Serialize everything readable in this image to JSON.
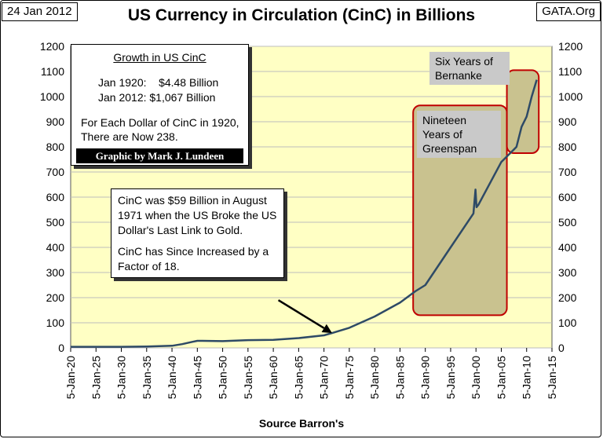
{
  "header": {
    "date": "24 Jan 2012",
    "title": "US Currency in Circulation (CinC) in Billions",
    "brand": "GATA.Org"
  },
  "footer": {
    "source": "Source Barron's"
  },
  "info_box": {
    "heading": "Growth in US CinC",
    "row1_label": "Jan 1920:",
    "row1_value": "$4.48 Billion",
    "row2_label": "Jan 2012:",
    "row2_value": "$1,067 Billion",
    "line1": "For Each Dollar of CinC in 1920,",
    "line2": "There are Now 238.",
    "credit": "Graphic by Mark J. Lundeen"
  },
  "annotation": {
    "text1": "CinC was $59 Billion in August 1971 when the US Broke the US Dollar's Last Link to Gold.",
    "text2": "CinC has Since Increased by a Factor of 18."
  },
  "labels": {
    "greenspan": "Nineteen Years of Greenspan",
    "bernanke": "Six Years of Bernanke"
  },
  "colors": {
    "plot_bg": "#ffffc4",
    "series": "#2e4a66",
    "highlight_border": "#c00000",
    "highlight_fill": "#c9c28f"
  },
  "chart_data": {
    "type": "line",
    "title": "US Currency in Circulation (CinC) in Billions",
    "xlabel": "Source Barron's",
    "ylabel": "",
    "ylim": [
      0,
      1200
    ],
    "xlim": [
      1920,
      2015
    ],
    "yticks": [
      0,
      100,
      200,
      300,
      400,
      500,
      600,
      700,
      800,
      900,
      1000,
      1100,
      1200
    ],
    "xticks": [
      "5-Jan-20",
      "5-Jan-25",
      "5-Jan-30",
      "5-Jan-35",
      "5-Jan-40",
      "5-Jan-45",
      "5-Jan-50",
      "5-Jan-55",
      "5-Jan-60",
      "5-Jan-65",
      "5-Jan-70",
      "5-Jan-75",
      "5-Jan-80",
      "5-Jan-85",
      "5-Jan-90",
      "5-Jan-95",
      "5-Jan-00",
      "5-Jan-05",
      "5-Jan-10",
      "5-Jan-15"
    ],
    "grid": true,
    "legend": "none",
    "series": [
      {
        "x": [
          1920,
          1925,
          1930,
          1935,
          1940,
          1942,
          1944,
          1945,
          1946,
          1950,
          1955,
          1960,
          1965,
          1970,
          1971.6,
          1975,
          1980,
          1985,
          1988,
          1990,
          1995,
          1999.5,
          1999.9,
          2000.1,
          2000.5,
          2005,
          2007.5,
          2008,
          2009,
          2010,
          2011,
          2012
        ],
        "y": [
          4.48,
          4.5,
          4.5,
          5.5,
          8.5,
          15,
          24,
          28,
          28,
          27,
          31,
          32,
          39,
          50,
          59,
          80,
          125,
          180,
          225,
          250,
          400,
          535,
          630,
          560,
          570,
          740,
          790,
          800,
          880,
          920,
          1000,
          1067
        ]
      }
    ],
    "highlights": [
      {
        "label": "Nineteen Years of Greenspan",
        "x_start": 1987.6,
        "x_end": 2006.1,
        "y_start": 130,
        "y_end": 965
      },
      {
        "label": "Six Years of Bernanke",
        "x_start": 2006.1,
        "x_end": 2012.4,
        "y_start": 775,
        "y_end": 1105
      }
    ],
    "arrow": {
      "from": [
        1961,
        190
      ],
      "to": [
        1971.6,
        59
      ]
    }
  }
}
